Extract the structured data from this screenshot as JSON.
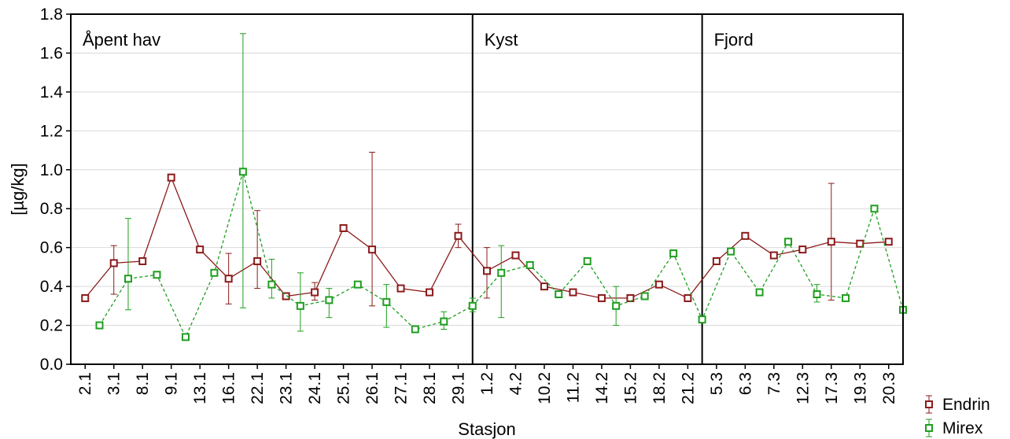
{
  "chart_data": {
    "type": "line",
    "xlabel": "Stasjon",
    "ylabel": "[µg/kg]",
    "ylim": [
      0,
      1.8
    ],
    "yticks": [
      "0.0",
      "0.2",
      "0.4",
      "0.6",
      "0.8",
      "1.0",
      "1.2",
      "1.4",
      "1.6",
      "1.8"
    ],
    "grid": true,
    "legend_position": "bottom-right",
    "ticks": [
      "2.1",
      "3.1",
      "8.1",
      "9.1",
      "13.1",
      "16.1",
      "22.1",
      "23.1",
      "24.1",
      "25.1",
      "26.1",
      "27.1",
      "28.1",
      "29.1",
      "1.2",
      "4.2",
      "10.2",
      "11.2",
      "14.2",
      "15.2",
      "18.2",
      "21.2",
      "5.3",
      "6.3",
      "7.3",
      "12.3",
      "17.3",
      "19.3",
      "20.3"
    ],
    "regions": [
      {
        "label": "Åpent hav",
        "start": "2.1",
        "end": "29.1"
      },
      {
        "label": "Kyst",
        "start": "1.2",
        "end": "21.2"
      },
      {
        "label": "Fjord",
        "start": "5.3",
        "end": "20.3"
      }
    ],
    "series": [
      {
        "name": "Endrin",
        "color": "#8b1a1a",
        "style": "solid",
        "points": [
          {
            "x": 0.0,
            "y": 0.34
          },
          {
            "x": 1.0,
            "y": 0.52,
            "lo": 0.36,
            "hi": 0.61
          },
          {
            "x": 2.0,
            "y": 0.53
          },
          {
            "x": 3.0,
            "y": 0.96
          },
          {
            "x": 4.0,
            "y": 0.59
          },
          {
            "x": 5.0,
            "y": 0.44,
            "lo": 0.31,
            "hi": 0.57
          },
          {
            "x": 6.0,
            "y": 0.53,
            "lo": 0.39,
            "hi": 0.79
          },
          {
            "x": 7.0,
            "y": 0.35
          },
          {
            "x": 8.0,
            "y": 0.37,
            "lo": 0.33,
            "hi": 0.42
          },
          {
            "x": 9.0,
            "y": 0.7
          },
          {
            "x": 10.0,
            "y": 0.59,
            "lo": 0.3,
            "hi": 1.09
          },
          {
            "x": 11.0,
            "y": 0.39
          },
          {
            "x": 12.0,
            "y": 0.37
          },
          {
            "x": 13.0,
            "y": 0.66,
            "lo": 0.6,
            "hi": 0.72
          },
          {
            "x": 14.0,
            "y": 0.48,
            "lo": 0.34,
            "hi": 0.6
          },
          {
            "x": 15.0,
            "y": 0.56
          },
          {
            "x": 16.0,
            "y": 0.4
          },
          {
            "x": 17.0,
            "y": 0.37
          },
          {
            "x": 18.0,
            "y": 0.34
          },
          {
            "x": 19.0,
            "y": 0.34
          },
          {
            "x": 20.0,
            "y": 0.41
          },
          {
            "x": 21.0,
            "y": 0.34
          },
          {
            "x": 22.0,
            "y": 0.53
          },
          {
            "x": 23.0,
            "y": 0.66
          },
          {
            "x": 24.0,
            "y": 0.56
          },
          {
            "x": 25.0,
            "y": 0.59
          },
          {
            "x": 26.0,
            "y": 0.63,
            "lo": 0.33,
            "hi": 0.93
          },
          {
            "x": 27.0,
            "y": 0.62
          },
          {
            "x": 28.0,
            "y": 0.63
          }
        ]
      },
      {
        "name": "Mirex",
        "color": "#1e9e1e",
        "style": "dashed",
        "points": [
          {
            "x": 0.5,
            "y": 0.2
          },
          {
            "x": 1.5,
            "y": 0.44,
            "lo": 0.28,
            "hi": 0.75
          },
          {
            "x": 2.5,
            "y": 0.46
          },
          {
            "x": 3.5,
            "y": 0.14
          },
          {
            "x": 4.5,
            "y": 0.47
          },
          {
            "x": 5.5,
            "y": 0.99,
            "lo": 0.29,
            "hi": 1.7
          },
          {
            "x": 6.5,
            "y": 0.41,
            "lo": 0.34,
            "hi": 0.54
          },
          {
            "x": 7.5,
            "y": 0.3,
            "lo": 0.17,
            "hi": 0.47
          },
          {
            "x": 8.5,
            "y": 0.33,
            "lo": 0.24,
            "hi": 0.39
          },
          {
            "x": 9.5,
            "y": 0.41
          },
          {
            "x": 10.5,
            "y": 0.32,
            "lo": 0.19,
            "hi": 0.41
          },
          {
            "x": 11.5,
            "y": 0.18
          },
          {
            "x": 12.5,
            "y": 0.22,
            "lo": 0.18,
            "hi": 0.27
          },
          {
            "x": 13.5,
            "y": 0.3,
            "lo": 0.27,
            "hi": 0.34
          },
          {
            "x": 14.5,
            "y": 0.47,
            "lo": 0.24,
            "hi": 0.61
          },
          {
            "x": 15.5,
            "y": 0.51
          },
          {
            "x": 16.5,
            "y": 0.36
          },
          {
            "x": 17.5,
            "y": 0.53
          },
          {
            "x": 18.5,
            "y": 0.3,
            "lo": 0.2,
            "hi": 0.4
          },
          {
            "x": 19.5,
            "y": 0.35
          },
          {
            "x": 20.5,
            "y": 0.57
          },
          {
            "x": 21.5,
            "y": 0.23
          },
          {
            "x": 22.5,
            "y": 0.58
          },
          {
            "x": 23.5,
            "y": 0.37
          },
          {
            "x": 24.5,
            "y": 0.63
          },
          {
            "x": 25.5,
            "y": 0.36,
            "lo": 0.32,
            "hi": 0.41
          },
          {
            "x": 26.5,
            "y": 0.34
          },
          {
            "x": 27.5,
            "y": 0.8
          },
          {
            "x": 28.5,
            "y": 0.28
          }
        ]
      }
    ]
  }
}
